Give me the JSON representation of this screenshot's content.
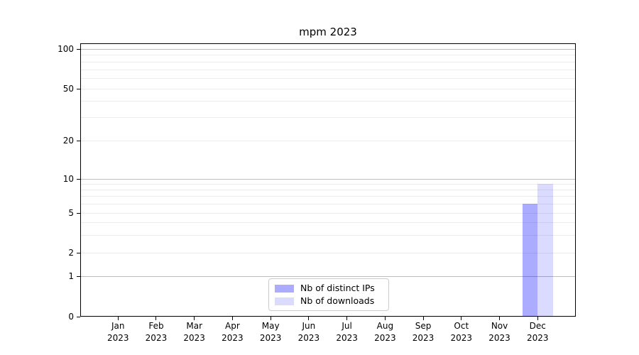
{
  "chart_data": {
    "type": "bar",
    "title": "mpm 2023",
    "x_categories": [
      "Jan 2023",
      "Feb 2023",
      "Mar 2023",
      "Apr 2023",
      "May 2023",
      "Jun 2023",
      "Jul 2023",
      "Aug 2023",
      "Sep 2023",
      "Oct 2023",
      "Nov 2023",
      "Dec 2023"
    ],
    "x_tick_labels": [
      {
        "month": "Jan",
        "year": "2023"
      },
      {
        "month": "Feb",
        "year": "2023"
      },
      {
        "month": "Mar",
        "year": "2023"
      },
      {
        "month": "Apr",
        "year": "2023"
      },
      {
        "month": "May",
        "year": "2023"
      },
      {
        "month": "Jun",
        "year": "2023"
      },
      {
        "month": "Jul",
        "year": "2023"
      },
      {
        "month": "Aug",
        "year": "2023"
      },
      {
        "month": "Sep",
        "year": "2023"
      },
      {
        "month": "Oct",
        "year": "2023"
      },
      {
        "month": "Nov",
        "year": "2023"
      },
      {
        "month": "Dec",
        "year": "2023"
      }
    ],
    "series": [
      {
        "name": "Nb of distinct IPs",
        "color": "rgba(0,0,255,0.33)",
        "values": [
          0,
          0,
          0,
          0,
          0,
          0,
          0,
          0,
          0,
          0,
          0,
          6
        ]
      },
      {
        "name": "Nb of downloads",
        "color": "rgba(0,0,255,0.14)",
        "values": [
          0,
          0,
          0,
          0,
          0,
          0,
          0,
          0,
          0,
          0,
          0,
          9
        ]
      }
    ],
    "y_axis": {
      "scale": "symlog",
      "ylim": [
        0,
        105
      ],
      "ticks": [
        {
          "v": 0,
          "label": "0"
        },
        {
          "v": 1,
          "label": "1"
        },
        {
          "v": 2,
          "label": "2"
        },
        {
          "v": 5,
          "label": "5"
        },
        {
          "v": 10,
          "label": "10"
        },
        {
          "v": 20,
          "label": "20"
        },
        {
          "v": 50,
          "label": "50"
        },
        {
          "v": 100,
          "label": "100"
        }
      ],
      "major_gridlines": [
        1,
        10,
        100
      ],
      "minor_gridlines": [
        2,
        3,
        4,
        5,
        6,
        7,
        8,
        9,
        20,
        30,
        40,
        50,
        60,
        70,
        80,
        90
      ]
    },
    "legend": {
      "position": "lower center"
    },
    "grid": "horizontal"
  },
  "colors": {
    "bar_distinct_ips": "rgba(0,0,255,0.33)",
    "bar_downloads": "rgba(0,0,255,0.14)",
    "grid_major": "#bdbdbd",
    "grid_minor": "#ececec",
    "axis_line": "#000000",
    "text": "#000000",
    "legend_border": "#cccccc",
    "background": "#ffffff"
  }
}
